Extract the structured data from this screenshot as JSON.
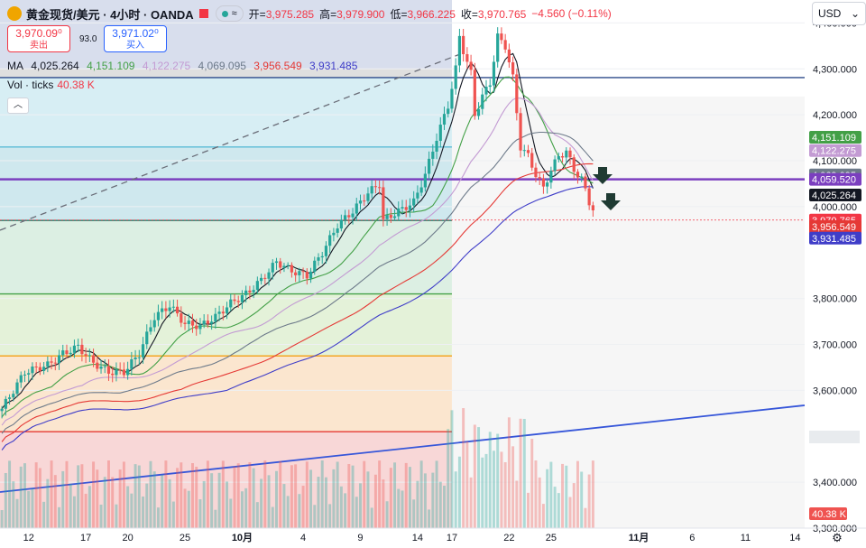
{
  "header": {
    "symbol": "黄金现货/美元 · 4小时 · OANDA",
    "indicator_pill": "≈",
    "open_label": "开=",
    "open": "3,975.285",
    "high_label": "高=",
    "high": "3,979.900",
    "low_label": "低=",
    "low": "3,966.225",
    "close_label": "收=",
    "close": "3,970.765",
    "change": "−4.560 (−0.11%)",
    "sell_price": "3,970.09⁰",
    "sell_label": "卖出",
    "spread": "93.0",
    "buy_price": "3,971.02⁰",
    "buy_label": "买入",
    "currency": "USD"
  },
  "legend": {
    "ma_label": "MA",
    "ma_values": [
      "4,025.264",
      "4,151.109",
      "4,122.275",
      "4,069.095",
      "3,956.549",
      "3,931.485"
    ],
    "ma_colors": [
      "#131722",
      "#43a047",
      "#c39bd3",
      "#6d7a8a",
      "#e53935",
      "#3f3dc8"
    ],
    "vol_label": "Vol · ticks",
    "vol_value": "40.38 K",
    "collapse_icon": "chevron-up-icon"
  },
  "chart_data": {
    "type": "candlestick",
    "ylim": [
      3300,
      4450
    ],
    "y_ticks": [
      "4,400.000",
      "4,300.000",
      "4,200.000",
      "4,100.000",
      "4,000.000",
      "3,800.000",
      "3,700.000",
      "3,600.000",
      "3,400.000",
      "3,300.000"
    ],
    "y_tick_values": [
      4400,
      4300,
      4200,
      4100,
      4000,
      3800,
      3700,
      3600,
      3400,
      3300
    ],
    "x_ticks": [
      "12",
      "17",
      "20",
      "25",
      "10月",
      "4",
      "9",
      "14",
      "17",
      "22",
      "25",
      "11月",
      "6",
      "11",
      "14"
    ],
    "x_tick_index": [
      7,
      22,
      33,
      48,
      63,
      79,
      94,
      109,
      118,
      133,
      144,
      167,
      181,
      195,
      208
    ],
    "last_index": 155,
    "future_bars": 56,
    "price_labels": [
      {
        "text": "4,151.109",
        "value": 4151.109,
        "color": "#43a047"
      },
      {
        "text": "4,122.275",
        "value": 4122.275,
        "color": "#c39bd3"
      },
      {
        "text": "4,069.095",
        "value": 4069.095,
        "color": "#6d7a8a"
      },
      {
        "text": "4,059.520",
        "value": 4059.52,
        "color": "#7b3fbf"
      },
      {
        "text": "4,025.264",
        "value": 4025.264,
        "color": "#131722"
      },
      {
        "text": "3,970.765",
        "value": 3970.765,
        "color": "#f23645",
        "sub": "02:56:07"
      },
      {
        "text": "3,956.549",
        "value": 3956.549,
        "color": "#e53935"
      },
      {
        "text": "3,931.485",
        "value": 3931.485,
        "color": "#3f3dc8"
      }
    ],
    "volume_label": "40.38 K",
    "horizontal_levels": [
      {
        "value": 4281,
        "color": "#2d4a8a"
      },
      {
        "value": 4130,
        "color": "#5bbcd6"
      },
      {
        "value": 4059.52,
        "color": "#7b3fbf"
      },
      {
        "value": 3970,
        "color": "#2e7d6b"
      },
      {
        "value": 3810,
        "color": "#43a047"
      },
      {
        "value": 3675,
        "color": "#f5a623"
      },
      {
        "value": 3510,
        "color": "#e53935"
      }
    ],
    "anchor_points": [
      [
        0,
        3560
      ],
      [
        6,
        3640
      ],
      [
        12,
        3655
      ],
      [
        16,
        3680
      ],
      [
        20,
        3695
      ],
      [
        24,
        3660
      ],
      [
        28,
        3640
      ],
      [
        32,
        3640
      ],
      [
        36,
        3680
      ],
      [
        40,
        3760
      ],
      [
        44,
        3785
      ],
      [
        48,
        3745
      ],
      [
        52,
        3740
      ],
      [
        56,
        3760
      ],
      [
        60,
        3790
      ],
      [
        64,
        3810
      ],
      [
        68,
        3840
      ],
      [
        72,
        3880
      ],
      [
        76,
        3860
      ],
      [
        80,
        3850
      ],
      [
        84,
        3900
      ],
      [
        88,
        3960
      ],
      [
        92,
        3990
      ],
      [
        96,
        4030
      ],
      [
        99,
        4050
      ],
      [
        100,
        3970
      ],
      [
        104,
        3990
      ],
      [
        108,
        4010
      ],
      [
        111,
        4070
      ],
      [
        114,
        4150
      ],
      [
        117,
        4220
      ],
      [
        119,
        4300
      ],
      [
        120,
        4370
      ],
      [
        121,
        4340
      ],
      [
        123,
        4290
      ],
      [
        124,
        4200
      ],
      [
        126,
        4240
      ],
      [
        128,
        4270
      ],
      [
        130,
        4370
      ],
      [
        132,
        4350
      ],
      [
        134,
        4280
      ],
      [
        136,
        4130
      ],
      [
        138,
        4110
      ],
      [
        140,
        4070
      ],
      [
        142,
        4040
      ],
      [
        144,
        4080
      ],
      [
        146,
        4110
      ],
      [
        148,
        4120
      ],
      [
        150,
        4080
      ],
      [
        152,
        4060
      ],
      [
        154,
        4010
      ],
      [
        156,
        3980
      ],
      [
        158,
        3950
      ],
      [
        160,
        3890
      ],
      [
        162,
        3935
      ],
      [
        164,
        3971
      ]
    ]
  }
}
